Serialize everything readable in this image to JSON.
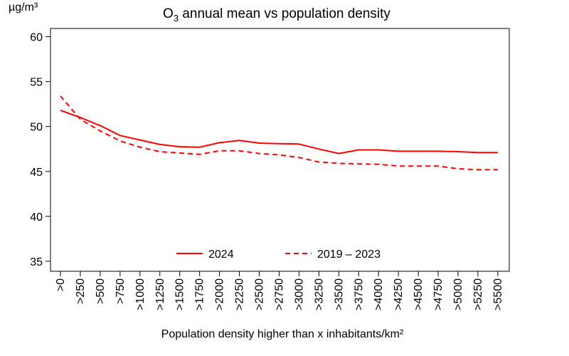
{
  "chart_data": {
    "type": "line",
    "title_main": "O",
    "title_sub": "3",
    "title_rest": " annual mean vs population density",
    "ylabel": "µg/m³",
    "xlabel": "Population density higher than x inhabitants/km²",
    "ylim": [
      35,
      60
    ],
    "yticks": [
      35,
      40,
      45,
      50,
      55,
      60
    ],
    "grid": false,
    "legend_position": "bottom-center",
    "categories": [
      ">0",
      ">250",
      ">500",
      ">750",
      ">1000",
      ">1250",
      ">1500",
      ">1750",
      ">2000",
      ">2250",
      ">2500",
      ">2750",
      ">3000",
      ">3250",
      ">3500",
      ">3750",
      ">4000",
      ">4250",
      ">4500",
      ">4750",
      ">5000",
      ">5250",
      ">5500"
    ],
    "series": [
      {
        "name": "2024",
        "style": "solid",
        "color": "#ff0000",
        "values": [
          51.8,
          51.0,
          50.1,
          49.0,
          48.5,
          48.0,
          47.75,
          47.7,
          48.2,
          48.45,
          48.15,
          48.1,
          48.05,
          47.5,
          47.0,
          47.4,
          47.4,
          47.25,
          47.25,
          47.25,
          47.2,
          47.1,
          47.1
        ]
      },
      {
        "name": "2019 – 2023",
        "style": "dashed",
        "color": "#ff0000",
        "values": [
          53.4,
          50.8,
          49.5,
          48.4,
          47.7,
          47.2,
          47.05,
          46.9,
          47.3,
          47.3,
          47.0,
          46.85,
          46.55,
          46.05,
          45.9,
          45.85,
          45.8,
          45.6,
          45.6,
          45.6,
          45.3,
          45.2,
          45.2
        ]
      }
    ]
  }
}
